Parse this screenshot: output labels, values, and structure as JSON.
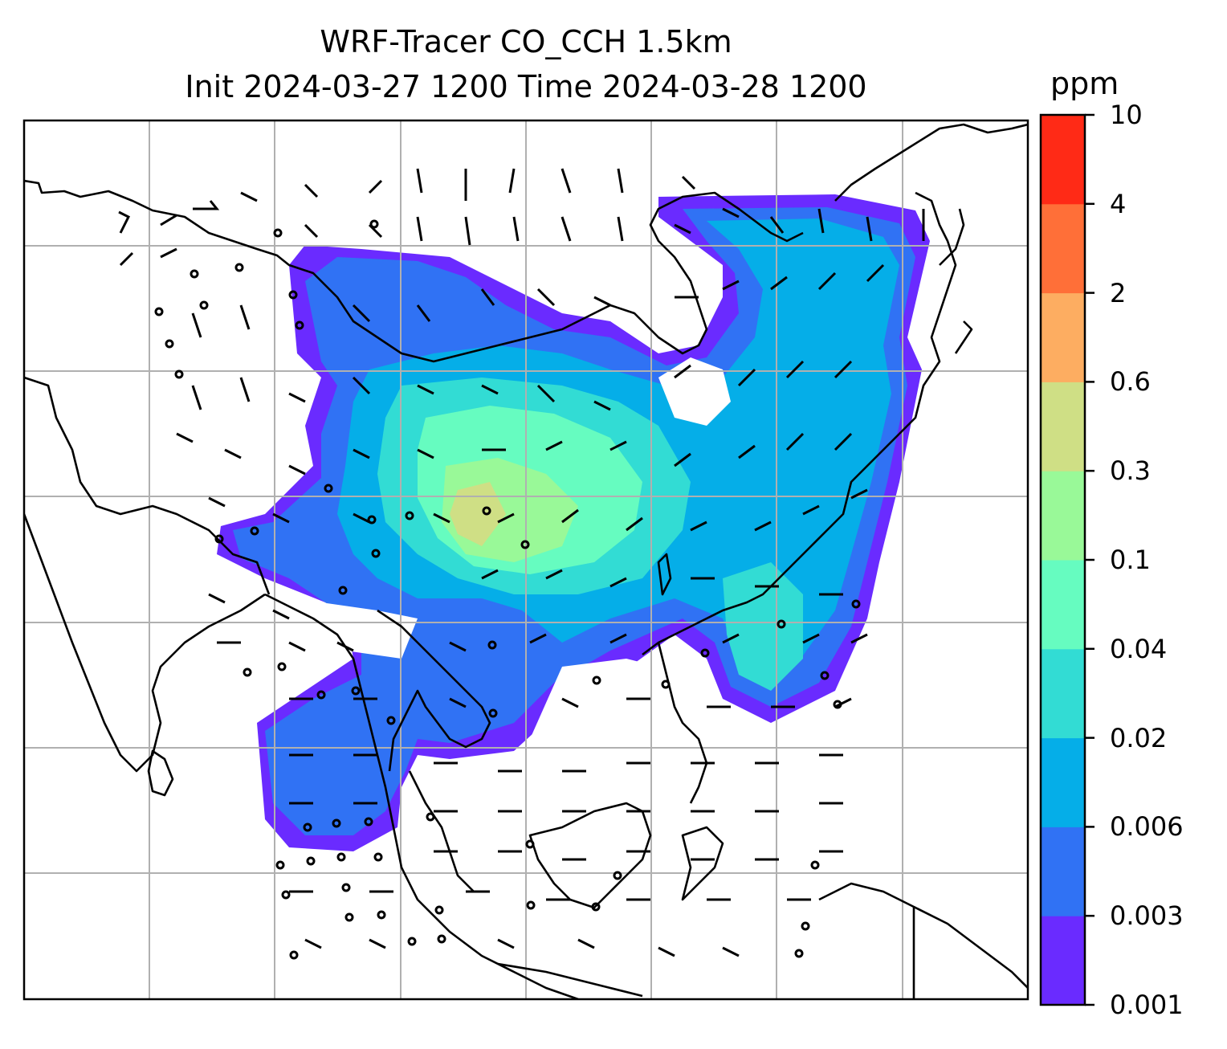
{
  "title": {
    "line1": "WRF-Tracer CO_CCH 1.5km",
    "line2": "Init 2024-03-27 1200 Time 2024-03-28 1200"
  },
  "colorbar": {
    "unit": "ppm",
    "levels": [
      "0.001",
      "0.003",
      "0.006",
      "0.02",
      "0.04",
      "0.1",
      "0.3",
      "0.6",
      "2",
      "4",
      "10"
    ],
    "colors": [
      "#6a2bff",
      "#3072f4",
      "#05aee8",
      "#32dcd4",
      "#66fcc0",
      "#99f998",
      "#cfdf85",
      "#fdad61",
      "#ff6f38",
      "#ff2a16"
    ]
  },
  "map": {
    "gridlines": true,
    "coastline_color": "#000000",
    "gridline_color": "#b0b0b0"
  }
}
